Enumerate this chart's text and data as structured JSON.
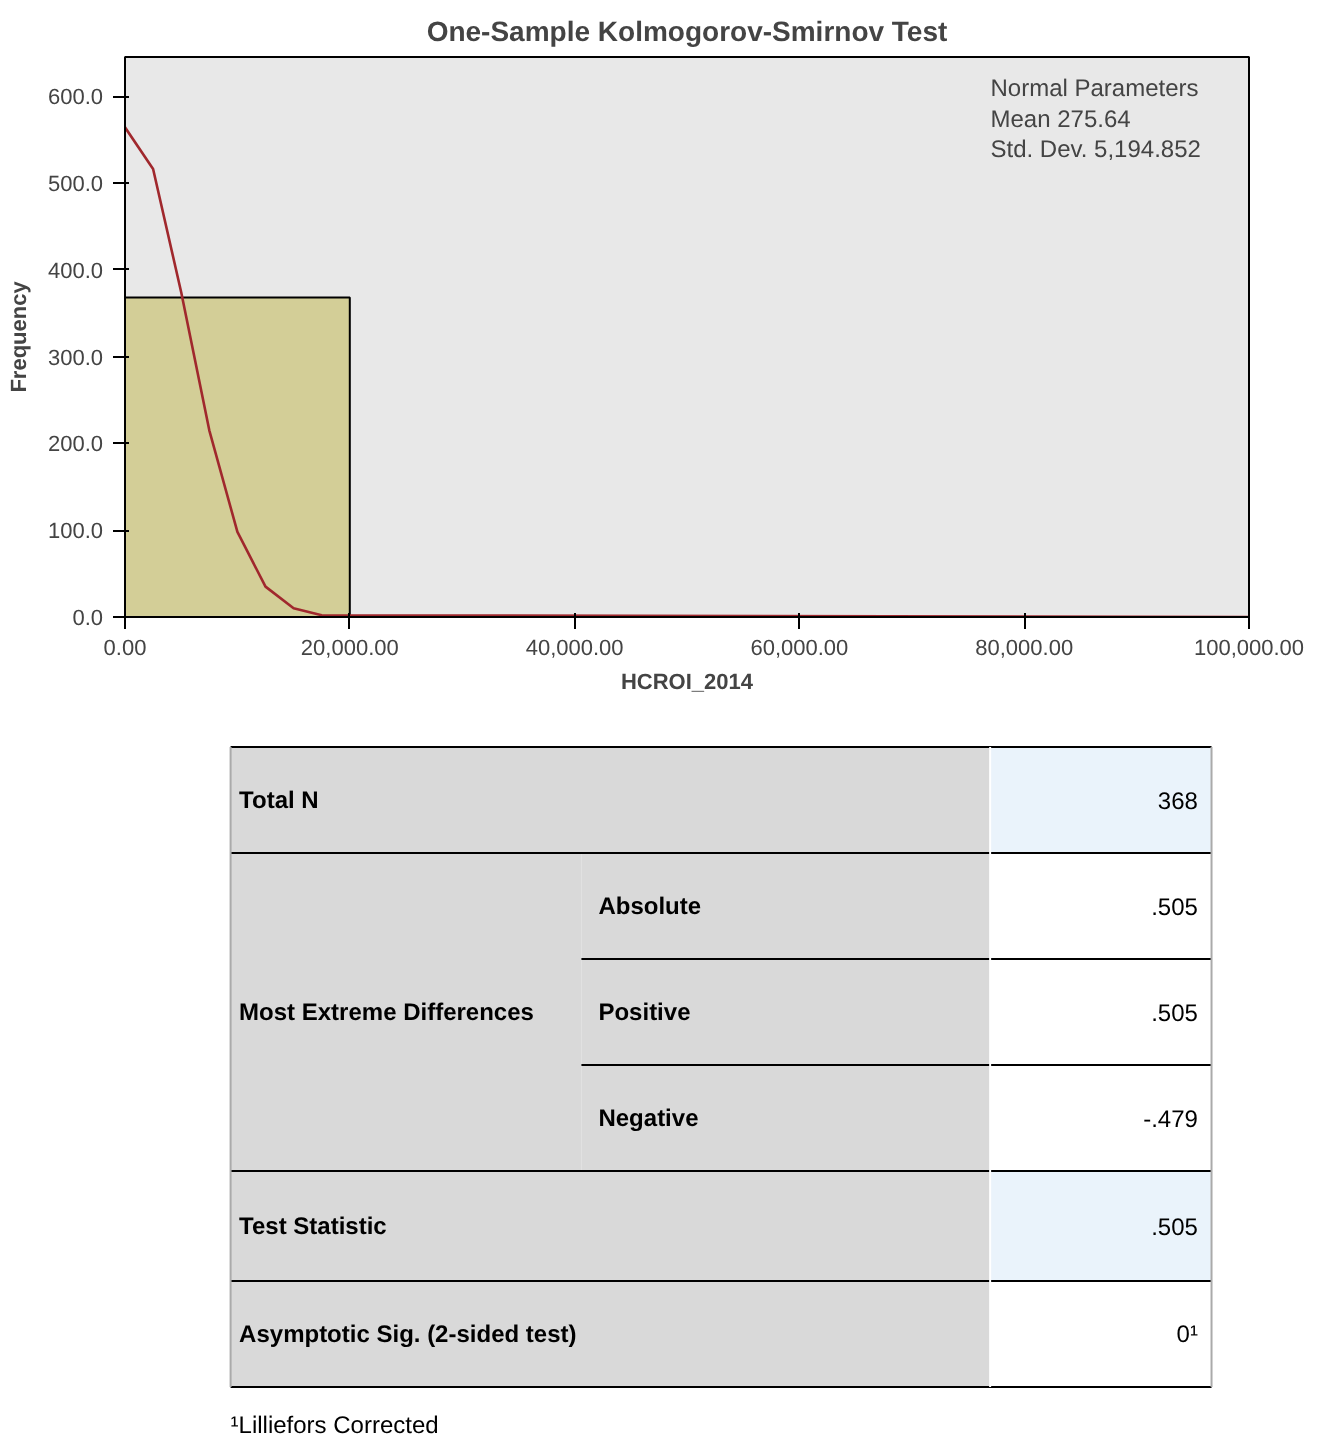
{
  "chart_data": [
    {
      "type": "histogram",
      "title": "One-Sample Kolmogorov-Smirnov Test",
      "xlabel": "HCROI_2014",
      "ylabel": "Frequency",
      "bins": [
        0,
        20000
      ],
      "values": [
        368
      ],
      "color": "#d3ce97",
      "series": [
        {
          "type": "line",
          "color": "#a0282d",
          "x": [
            0,
            2500,
            5000,
            7500,
            10000,
            12500,
            15000,
            17500,
            100000
          ],
          "values": [
            564,
            516,
            374,
            215,
            98,
            35,
            10,
            2,
            0
          ]
        }
      ],
      "xlim": [
        0,
        100000
      ],
      "ylim": [
        0,
        645
      ],
      "xticks": [
        {
          "value": 0,
          "label": "0.00"
        },
        {
          "value": 20000,
          "label": "20,000.00"
        },
        {
          "value": 40000,
          "label": "40,000.00"
        },
        {
          "value": 60000,
          "label": "60,000.00"
        },
        {
          "value": 80000,
          "label": "80,000.00"
        },
        {
          "value": 100000,
          "label": "100,000.00"
        }
      ],
      "yticks": [
        {
          "value": 0,
          "label": "0.0"
        },
        {
          "value": 100,
          "label": "100.0"
        },
        {
          "value": 200,
          "label": "200.0"
        },
        {
          "value": 300,
          "label": "300.0"
        },
        {
          "value": 400,
          "label": "400.0"
        },
        {
          "value": 500,
          "label": "500.0"
        },
        {
          "value": 600,
          "label": "600.0"
        }
      ],
      "grid": false,
      "annotations": [
        "Normal Parameters",
        "Mean 275.64",
        "Std. Dev. 5,194.852"
      ]
    },
    {
      "type": "other",
      "annotations": [
        "Total N",
        "368",
        "Most Extreme Differences",
        "Absolute",
        ".505",
        "Positive",
        ".505",
        "Negative",
        "-.479",
        "Test Statistic",
        ".505",
        "Asymptotic Sig. (2-sided test)",
        "0¹",
        "¹Lilliefors Corrected"
      ]
    }
  ]
}
